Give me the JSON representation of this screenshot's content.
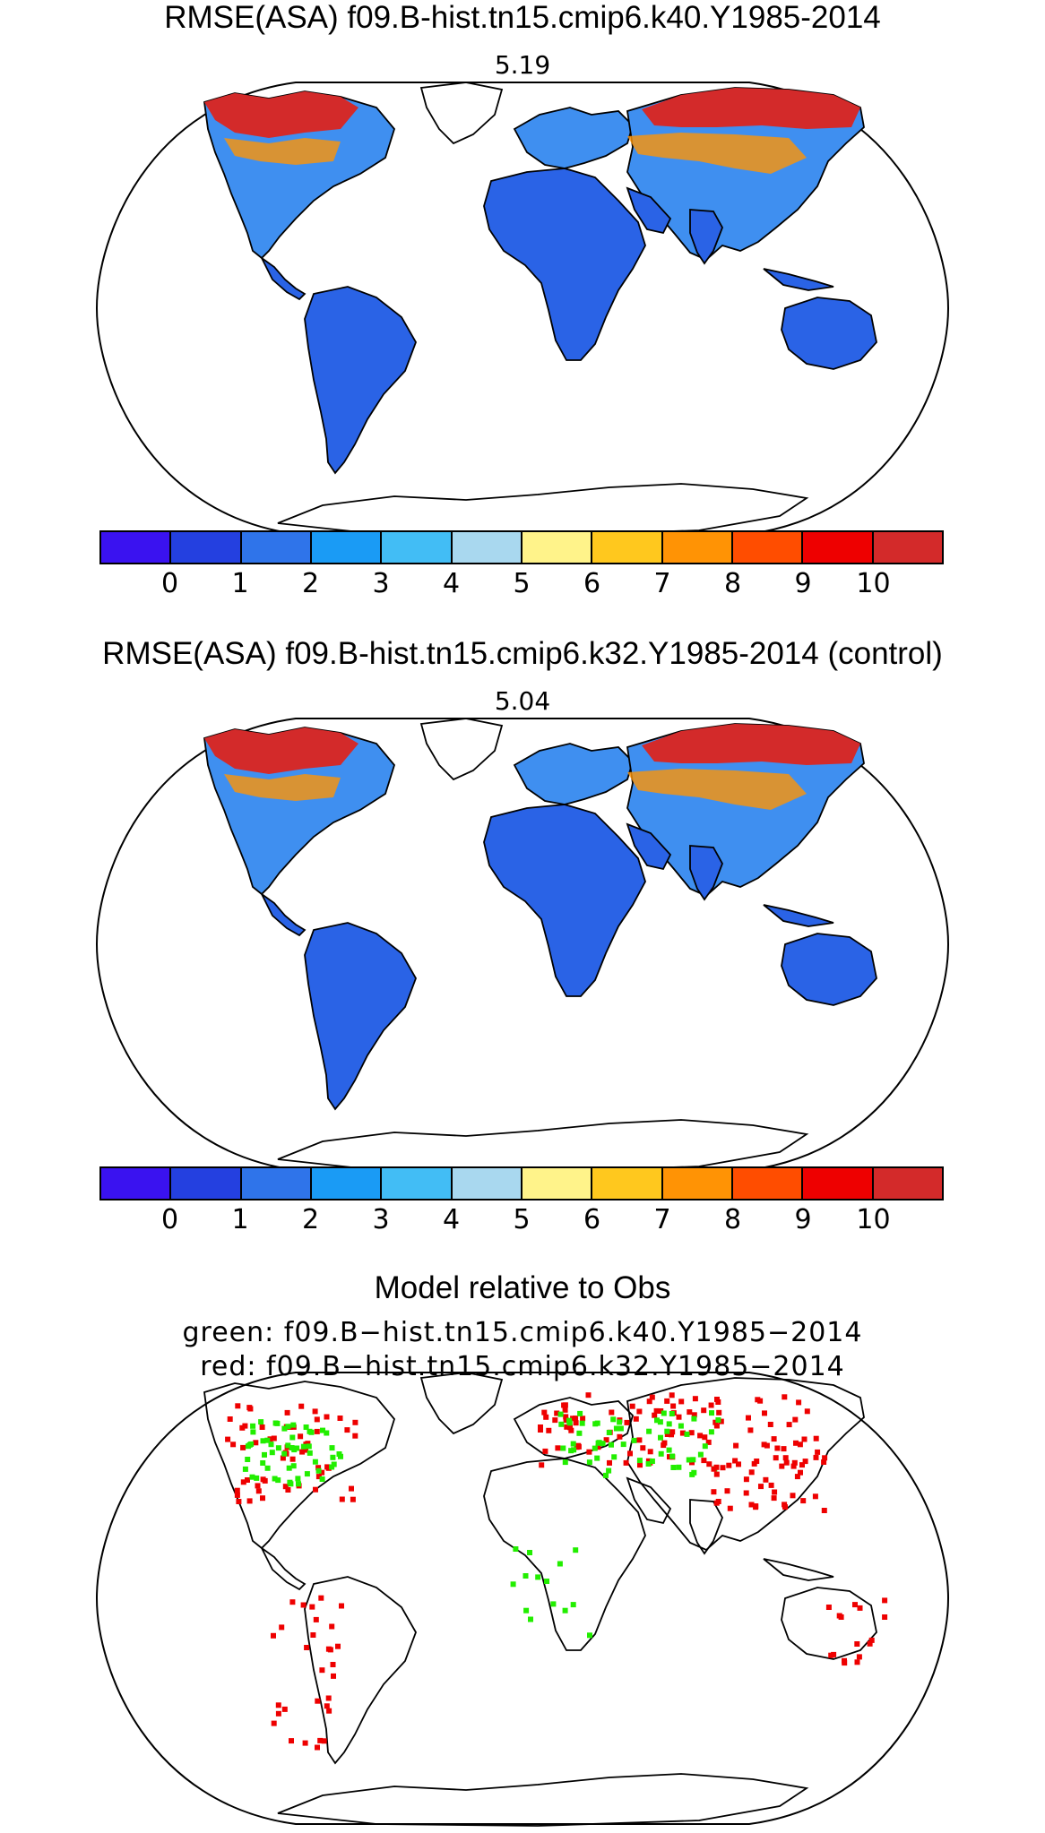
{
  "panel1": {
    "title": "RMSE(ASA) f09.B-hist.tn15.cmip6.k40.Y1985-2014",
    "value": "5.19"
  },
  "panel2": {
    "title": "RMSE(ASA) f09.B-hist.tn15.cmip6.k32.Y1985-2014 (control)",
    "value": "5.04"
  },
  "panel3": {
    "title": "Model relative to Obs",
    "legend_green": "green: f09.B−hist.tn15.cmip6.k40.Y1985−2014",
    "legend_red": "red: f09.B−hist.tn15.cmip6.k32.Y1985−2014"
  },
  "colorbar": {
    "colors": [
      "#3a12f0",
      "#2440e0",
      "#2f74ea",
      "#1a9bf5",
      "#42bdf5",
      "#a9d8ef",
      "#fff38a",
      "#ffc81e",
      "#ff9305",
      "#ff4d00",
      "#ee0000",
      "#d32a2a"
    ],
    "tick_labels": [
      "0",
      "1",
      "2",
      "3",
      "4",
      "5",
      "6",
      "7",
      "8",
      "9",
      "10"
    ]
  },
  "map_colors": {
    "land_low": "#2a63e6",
    "land_mid": "#3f8ff0",
    "land_high": "#d32a2a",
    "land_warm": "#ff9305",
    "compare_green": "#22ee00",
    "compare_red": "#ee0000"
  }
}
